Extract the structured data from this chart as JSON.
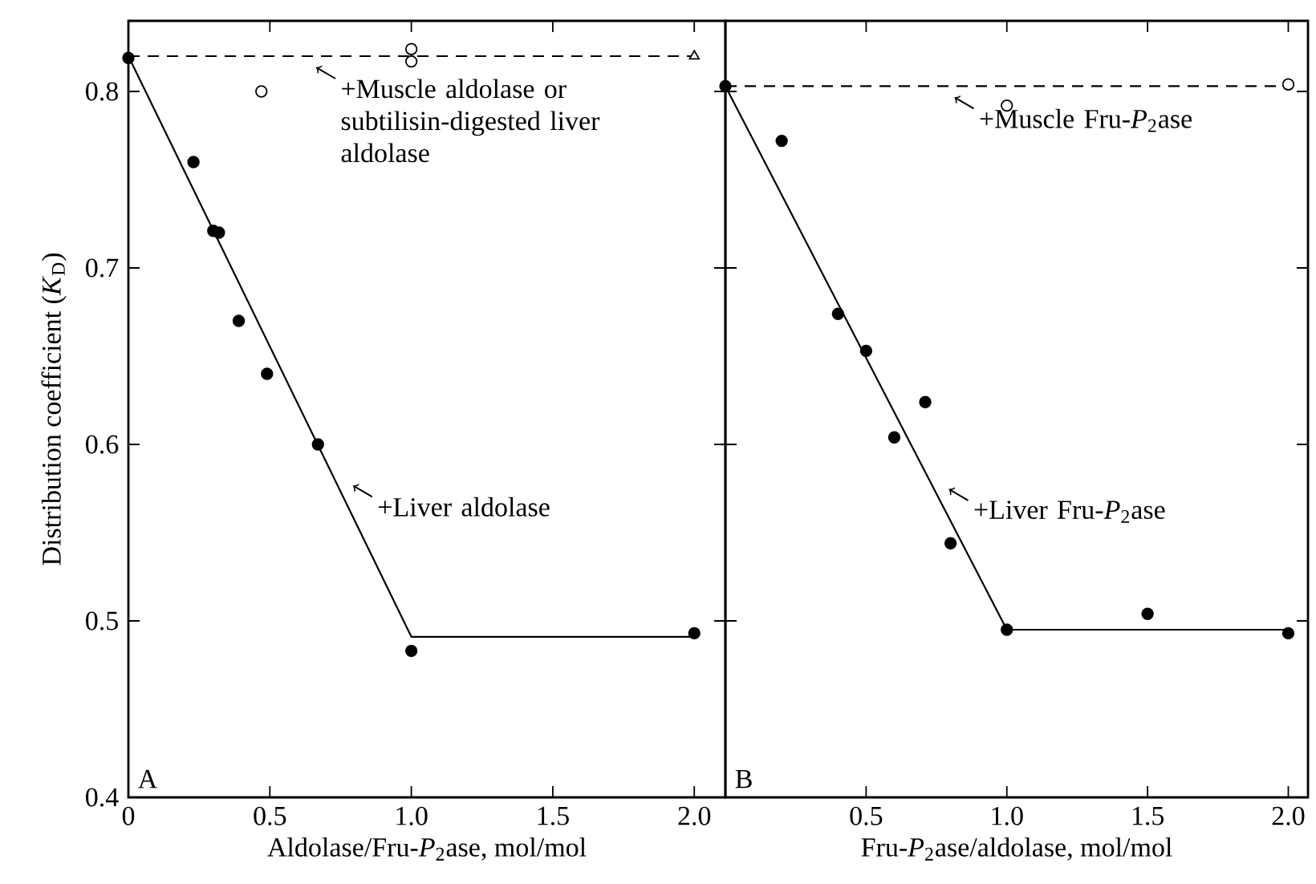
{
  "chart_data": [
    {
      "type": "scatter",
      "xlabel": "Aldolase/Fru-*P*$_{2}$ase, mol/mol",
      "ylabel": "Distribution coefficient (*K*$_{D}$)",
      "xlim": [
        0,
        2.11
      ],
      "ylim": [
        0.4,
        0.84
      ],
      "xticks": [
        0,
        0.5,
        {
          "value": 1,
          "label": "1.0"
        },
        1.5,
        {
          "value": 2,
          "label": "2.0"
        }
      ],
      "yticks": [
        0.4,
        0.5,
        0.6,
        0.7,
        0.8
      ],
      "grid": false,
      "annotations": [
        {
          "text": "+Muscle aldolase or subtilisin-digested liver aldolase",
          "x": 0.59,
          "y": 0.82
        },
        {
          "text": "+Liver aldolase",
          "x": 0.72,
          "y": 0.583
        },
        "A"
      ],
      "series": [
        {
          "marker": "circle",
          "color": "#000000",
          "x": [
            0,
            0.23,
            0.3,
            0.32,
            0.39,
            0.49,
            0.67,
            1.0,
            2.0
          ],
          "values": [
            0.819,
            0.76,
            0.721,
            0.72,
            0.67,
            0.64,
            0.6,
            0.483,
            0.493
          ]
        },
        {
          "marker": "circle",
          "color": "#ffffff",
          "x": [
            0.47,
            1.0,
            1.0
          ],
          "values": [
            0.8,
            0.824,
            0.817
          ]
        },
        {
          "marker": "triangle",
          "color": "#ffffff",
          "x": [
            2.0
          ],
          "values": [
            0.82
          ]
        },
        {
          "type": "line",
          "line_style": "solid",
          "color": "#000000",
          "x": [
            0,
            1.0,
            2.0
          ],
          "values": [
            0.82,
            0.491,
            0.491
          ]
        },
        {
          "type": "line",
          "line_style": "dashed",
          "color": "#000000",
          "x": [
            0,
            2.0
          ],
          "values": [
            0.82,
            0.82
          ]
        }
      ]
    },
    {
      "type": "scatter",
      "xlabel": "Fru-*P*$_{2}$ase/aldolase, mol/mol",
      "xlim": [
        0,
        2.07
      ],
      "ylim": [
        0.4,
        0.84
      ],
      "xticks": [
        {
          "value": 0,
          "label": null
        },
        0.5,
        {
          "value": 1,
          "label": "1.0"
        },
        1.5,
        {
          "value": 2,
          "label": "2.0"
        }
      ],
      "yticks": [
        0.4,
        0.5,
        0.6,
        0.7,
        0.8
      ],
      "tick_labels": "x",
      "grid": false,
      "annotations": [
        {
          "text": "+Muscle Fru-*P*$_{2}$ase",
          "x": 0.74,
          "y": 0.803
        },
        {
          "text": "+Liver Fru-*P*$_{2}$ase",
          "x": 0.72,
          "y": 0.581
        },
        "B"
      ],
      "series": [
        {
          "marker": "circle",
          "color": "#000000",
          "x": [
            0,
            0.2,
            0.4,
            0.5,
            0.6,
            0.71,
            0.8,
            1.0,
            1.5,
            2.0
          ],
          "values": [
            0.803,
            0.772,
            0.674,
            0.653,
            0.604,
            0.624,
            0.544,
            0.495,
            0.504,
            0.493
          ]
        },
        {
          "marker": "circle",
          "color": "#ffffff",
          "x": [
            1.0,
            2.0
          ],
          "values": [
            0.792,
            0.804
          ]
        },
        {
          "type": "line",
          "line_style": "solid",
          "color": "#000000",
          "x": [
            0,
            1.0,
            2.0
          ],
          "values": [
            0.803,
            0.495,
            0.495
          ]
        },
        {
          "type": "line",
          "line_style": "dashed",
          "color": "#000000",
          "x": [
            0,
            2.0
          ],
          "values": [
            0.803,
            0.803
          ]
        }
      ]
    }
  ]
}
